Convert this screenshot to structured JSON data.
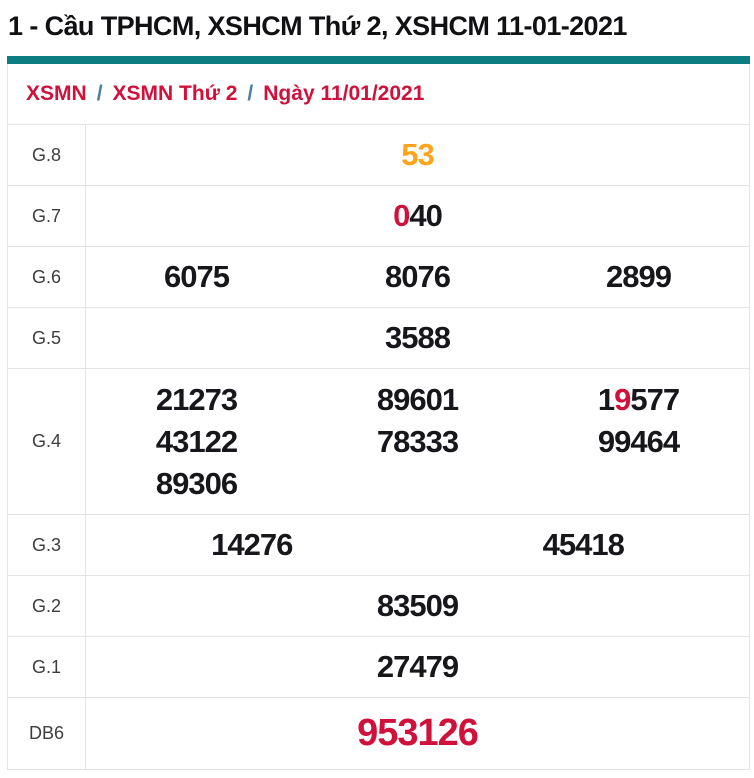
{
  "page_title": "1 - Cầu TPHCM, XSHCM Thứ 2, XSHCM 11-01-2021",
  "breadcrumb": {
    "separator": "/",
    "items": [
      {
        "label": "XSMN"
      },
      {
        "label": "XSMN Thứ 2"
      },
      {
        "label": "Ngày 11/01/2021"
      }
    ]
  },
  "colors": {
    "accent_teal": "#0c7e81",
    "highlight_red": "#d0113c",
    "highlight_orange": "#ffa41c",
    "value_black": "#17171b",
    "border_gray": "#e3e3e3"
  },
  "results": {
    "g8": {
      "label": "G.8",
      "value": "53"
    },
    "g7": {
      "label": "G.7",
      "hl": "0",
      "rest": "40"
    },
    "g6": {
      "label": "G.6",
      "v1": "6075",
      "v2": "8076",
      "v3": "2899"
    },
    "g5": {
      "label": "G.5",
      "value": "3588"
    },
    "g4": {
      "label": "G.4",
      "v1": "21273",
      "v2": "89601",
      "v3_pre": "1",
      "v3_hl": "9",
      "v3_post": "577",
      "v4": "43122",
      "v5": "78333",
      "v6": "99464",
      "v7": "89306"
    },
    "g3": {
      "label": "G.3",
      "v1": "14276",
      "v2": "45418"
    },
    "g2": {
      "label": "G.2",
      "value": "83509"
    },
    "g1": {
      "label": "G.1",
      "value": "27479"
    },
    "db6": {
      "label": "DB6",
      "value": "953126"
    }
  }
}
